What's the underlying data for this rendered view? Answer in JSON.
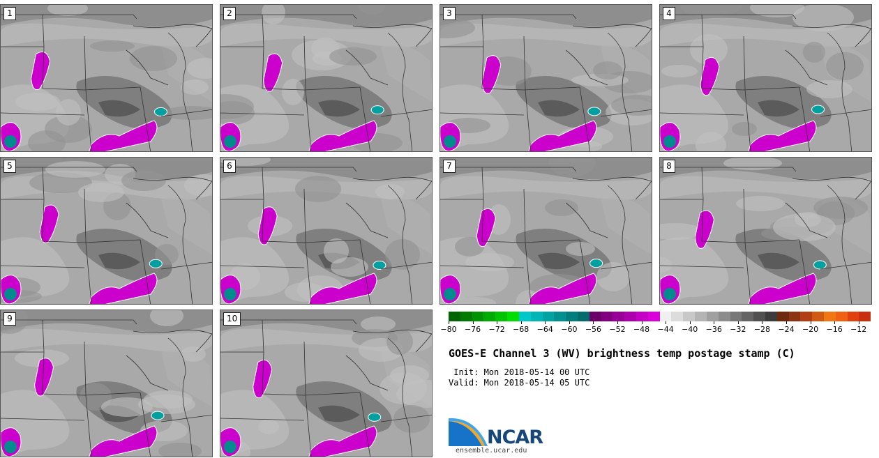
{
  "panels": [
    {
      "label": "1"
    },
    {
      "label": "2"
    },
    {
      "label": "3"
    },
    {
      "label": "4"
    },
    {
      "label": "5"
    },
    {
      "label": "6"
    },
    {
      "label": "7"
    },
    {
      "label": "8"
    },
    {
      "label": "9"
    },
    {
      "label": "10"
    }
  ],
  "colorbar": {
    "ticks": [
      "−80",
      "−76",
      "−72",
      "−68",
      "−64",
      "−60",
      "−56",
      "−52",
      "−48",
      "−44",
      "−40",
      "−36",
      "−32",
      "−28",
      "−24",
      "−20",
      "−16",
      "−12"
    ],
    "colors": [
      "#006400",
      "#007a00",
      "#009200",
      "#00ab00",
      "#00c400",
      "#00dd00",
      "#00c8c8",
      "#00b5b5",
      "#00a2a2",
      "#009090",
      "#007e7e",
      "#006c6c",
      "#6a0068",
      "#800080",
      "#960096",
      "#ac00ac",
      "#c300c3",
      "#d900d9",
      "#f0f0f0",
      "#dcdcdc",
      "#c8c8c8",
      "#b4b4b4",
      "#a0a0a0",
      "#8c8c8c",
      "#787878",
      "#646464",
      "#505050",
      "#3c3c3c",
      "#6e2a0c",
      "#8b3410",
      "#b04014",
      "#d05a14",
      "#f07814",
      "#f06014",
      "#e04010",
      "#c83010"
    ]
  },
  "title": "GOES-E Channel 3 (WV) brightness temp postage stamp (C)",
  "init": " Init: Mon 2018-05-14 00 UTC",
  "valid": "Valid: Mon 2018-05-14 05 UTC",
  "logo": {
    "name": "NCAR",
    "url": "ensemble.ucar.edu"
  }
}
